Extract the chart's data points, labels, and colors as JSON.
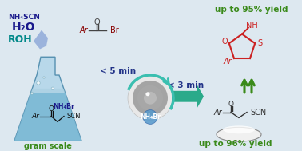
{
  "bg_color": "#dde8f0",
  "arrow_color": "#2aaa8a",
  "arrow_color2": "#3bbfb0",
  "text_green": "#3a8a1a",
  "text_red": "#cc2222",
  "text_blue": "#1a1a8c",
  "text_teal": "#008888",
  "text_dark": "#111111",
  "label1": "up to 95% yield",
  "label2": "up to 96% yield",
  "label3": "< 5 min",
  "label4": "< 3 min",
  "label5": "gram scale",
  "nh4scn": "NH₄SCN",
  "h2o": "H₂O",
  "roh": "ROH",
  "nh4br": "NH₄Br",
  "flask_body_color": "#b8d8ea",
  "flask_edge_color": "#5590b0",
  "flask_liquid_color": "#7ab8d4",
  "flask_liquid_color2": "#a8cfe0"
}
